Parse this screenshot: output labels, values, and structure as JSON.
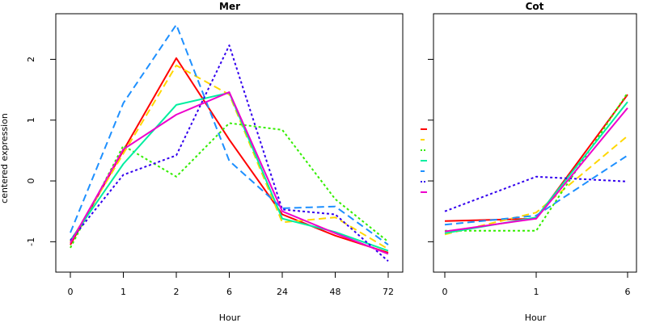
{
  "ylabel": "centered expression",
  "chart_data": [
    {
      "type": "line",
      "title": "Mer",
      "xlabel": "Hour",
      "categories": [
        "0",
        "1",
        "2",
        "6",
        "24",
        "48",
        "72"
      ],
      "ylim": [
        -1.5,
        2.75
      ],
      "yticks": [
        "-1",
        "0",
        "1",
        "2"
      ],
      "grid": false,
      "series": [
        {
          "color": "#ff0000",
          "dash": "solid",
          "values": [
            -1.05,
            0.5,
            2.02,
            0.68,
            -0.55,
            -0.9,
            -1.18
          ]
        },
        {
          "color": "#ffd700",
          "dash": "dashed",
          "values": [
            -1.0,
            0.45,
            1.9,
            1.42,
            -0.68,
            -0.6,
            -1.12
          ]
        },
        {
          "color": "#33ee00",
          "dash": "dotted",
          "values": [
            -1.1,
            0.58,
            0.07,
            0.95,
            0.84,
            -0.3,
            -1.0
          ]
        },
        {
          "color": "#00eea0",
          "dash": "solid",
          "values": [
            -0.98,
            0.28,
            1.25,
            1.45,
            -0.62,
            -0.84,
            -1.15
          ]
        },
        {
          "color": "#1e90ff",
          "dash": "dashed",
          "values": [
            -0.85,
            1.28,
            2.57,
            0.33,
            -0.45,
            -0.42,
            -1.05
          ]
        },
        {
          "color": "#3300ee",
          "dash": "dotted",
          "values": [
            -0.98,
            0.1,
            0.42,
            2.23,
            -0.47,
            -0.55,
            -1.32
          ]
        },
        {
          "color": "#ee00cc",
          "dash": "solid",
          "values": [
            -1.02,
            0.52,
            1.09,
            1.46,
            -0.5,
            -0.86,
            -1.2
          ]
        }
      ]
    },
    {
      "type": "line",
      "title": "Cot",
      "xlabel": "Hour",
      "categories": [
        "0",
        "1",
        "6"
      ],
      "ylim": [
        -1.5,
        2.75
      ],
      "grid": false,
      "series": [
        {
          "color": "#ff0000",
          "dash": "solid",
          "values": [
            -0.66,
            -0.62,
            1.42
          ]
        },
        {
          "color": "#ffd700",
          "dash": "dashed",
          "values": [
            -0.88,
            -0.52,
            0.74
          ]
        },
        {
          "color": "#33ee00",
          "dash": "dotted",
          "values": [
            -0.82,
            -0.82,
            1.45
          ]
        },
        {
          "color": "#00eea0",
          "dash": "solid",
          "values": [
            -0.86,
            -0.6,
            1.3
          ]
        },
        {
          "color": "#1e90ff",
          "dash": "dashed",
          "values": [
            -0.72,
            -0.57,
            0.42
          ]
        },
        {
          "color": "#3300ee",
          "dash": "dotted",
          "values": [
            -0.5,
            0.07,
            -0.01
          ]
        },
        {
          "color": "#ee00cc",
          "dash": "solid",
          "values": [
            -0.83,
            -0.62,
            1.2
          ]
        }
      ]
    }
  ]
}
